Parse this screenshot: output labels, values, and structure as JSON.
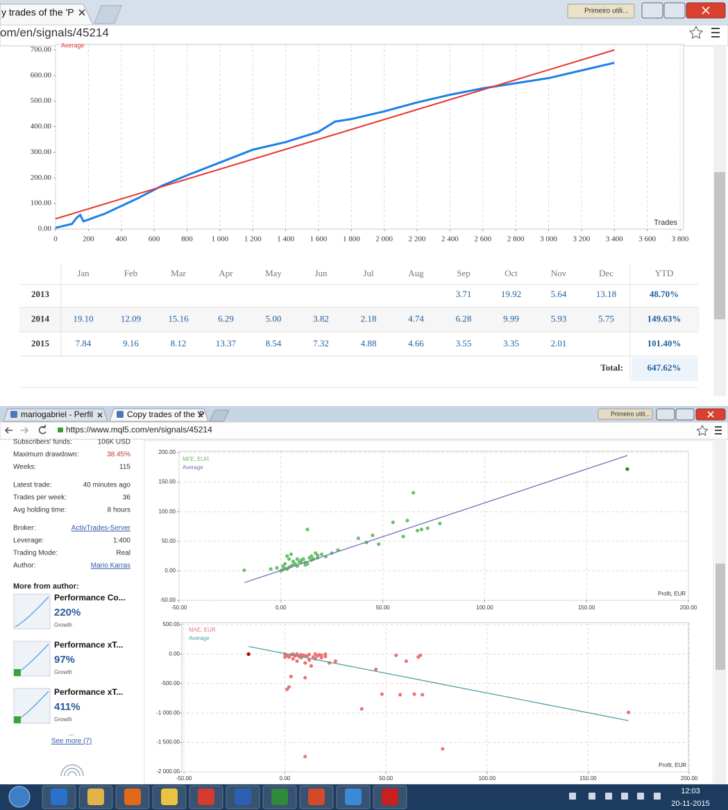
{
  "top_window": {
    "tab": "y trades of the 'P",
    "profile": "Primeiro utili...",
    "url": "om/en/signals/45214"
  },
  "bottom_window": {
    "tabs": [
      "mariogabriel - Perfil",
      "Copy trades of the 'P"
    ],
    "profile": "Primeiro utili...",
    "url": "https://www.mql5.com/en/signals/45214"
  },
  "chart_data": [
    {
      "type": "line",
      "x_label": "Trades",
      "grid": "x",
      "xlim": [
        0,
        3800
      ],
      "ylim": [
        0,
        700
      ],
      "xticks": [
        0,
        200,
        400,
        600,
        800,
        {
          "value": 1000,
          "label": "1 000"
        },
        {
          "value": 1200,
          "label": "1 200"
        },
        {
          "value": 1400,
          "label": "1 400"
        },
        {
          "value": 1600,
          "label": "1 600"
        },
        {
          "value": 1800,
          "label": "1 800"
        },
        {
          "value": 2000,
          "label": "2 000"
        },
        {
          "value": 2200,
          "label": "2 200"
        },
        {
          "value": 2400,
          "label": "2 400"
        },
        {
          "value": 2600,
          "label": "2 600"
        },
        {
          "value": 2800,
          "label": "2 800"
        },
        {
          "value": 3000,
          "label": "3 000"
        },
        {
          "value": 3200,
          "label": "3 200"
        },
        {
          "value": 3400,
          "label": "3 400"
        },
        {
          "value": 3600,
          "label": "3 600"
        },
        {
          "value": 3800,
          "label": "3 800"
        }
      ],
      "yticks": [
        {
          "value": 0,
          "label": "0.00"
        },
        {
          "value": 100,
          "label": "100.00"
        },
        {
          "value": 200,
          "label": "200.00"
        },
        {
          "value": 300,
          "label": "300.00"
        },
        {
          "value": 400,
          "label": "400.00"
        },
        {
          "value": 500,
          "label": "500.00"
        },
        {
          "value": 600,
          "label": "600.00"
        },
        {
          "value": 700,
          "label": "700.00"
        }
      ],
      "series": [
        {
          "color": "#1e7fe8",
          "style": "line",
          "width": 3,
          "x": [
            0,
            100,
            130,
            150,
            170,
            300,
            500,
            650,
            800,
            1000,
            1200,
            1400,
            1600,
            1700,
            1800,
            2000,
            2200,
            2400,
            2600,
            2800,
            3000,
            3200,
            3400
          ],
          "values": [
            5,
            20,
            45,
            55,
            30,
            60,
            120,
            170,
            210,
            260,
            310,
            340,
            380,
            420,
            430,
            460,
            495,
            525,
            550,
            570,
            590,
            620,
            650
          ]
        },
        {
          "name": "Average",
          "color": "#e8332f",
          "style": "line",
          "width": 2,
          "x": [
            0,
            3400
          ],
          "values": [
            40,
            700
          ]
        }
      ]
    },
    {
      "type": "scatter",
      "x_label": "Profit, EUR",
      "grid": "both",
      "xlim": [
        -50,
        200
      ],
      "ylim": [
        -50,
        200
      ],
      "xticks": [
        {
          "value": -50,
          "label": "-50.00"
        },
        {
          "value": 0,
          "label": "0.00"
        },
        {
          "value": 50,
          "label": "50.00"
        },
        {
          "value": 100,
          "label": "100.00"
        },
        {
          "value": 150,
          "label": "150.00"
        },
        {
          "value": 200,
          "label": "200.00"
        }
      ],
      "yticks": [
        {
          "value": -50,
          "label": "-50.00"
        },
        {
          "value": 0,
          "label": "0.00"
        },
        {
          "value": 50,
          "label": "50.00"
        },
        {
          "value": 100,
          "label": "100.00"
        },
        {
          "value": 150,
          "label": "150.00"
        },
        {
          "value": 200,
          "label": "200.00"
        }
      ],
      "series": [
        {
          "name": "MFE, EUR",
          "color": "#6cbf6c",
          "style": "points",
          "x": [
            -18,
            -5,
            -2,
            0,
            1,
            2,
            3,
            4,
            5,
            6,
            7,
            8,
            9,
            10,
            11,
            12,
            13,
            14,
            15,
            16,
            17,
            18,
            20,
            22,
            25,
            28,
            12,
            13,
            3,
            5,
            8,
            10,
            15,
            18,
            38,
            42,
            45,
            48,
            55,
            60,
            62,
            65,
            67,
            69,
            72,
            78,
            2,
            4,
            6,
            1
          ],
          "values": [
            1,
            3,
            5,
            0,
            2,
            4,
            3,
            6,
            8,
            10,
            12,
            8,
            15,
            18,
            20,
            14,
            70,
            22,
            25,
            20,
            30,
            26,
            28,
            24,
            30,
            35,
            10,
            12,
            25,
            28,
            20,
            14,
            18,
            22,
            55,
            48,
            60,
            45,
            82,
            58,
            85,
            132,
            68,
            70,
            72,
            80,
            12,
            20,
            16,
            8
          ]
        },
        {
          "name": "Average",
          "color": "#6b72b5",
          "style": "line",
          "width": 1.3,
          "x": [
            -18,
            170
          ],
          "values": [
            -20,
            195
          ]
        },
        {
          "color": "#1b8f1b",
          "style": "points",
          "x": [
            170
          ],
          "values": [
            172
          ]
        }
      ]
    },
    {
      "type": "scatter",
      "x_label": "Profit, EUR",
      "grid": "both",
      "xlim": [
        -50,
        200
      ],
      "ylim": [
        -2000,
        500
      ],
      "xticks": [
        {
          "value": -50,
          "label": "-50.00"
        },
        {
          "value": 0,
          "label": "0.00"
        },
        {
          "value": 50,
          "label": "50.00"
        },
        {
          "value": 100,
          "label": "100.00"
        },
        {
          "value": 150,
          "label": "150.00"
        },
        {
          "value": 200,
          "label": "200.00"
        }
      ],
      "yticks": [
        {
          "value": -2000,
          "label": "-2 000.00"
        },
        {
          "value": -1500,
          "label": "-1 500.00"
        },
        {
          "value": -1000,
          "label": "-1 000.00"
        },
        {
          "value": -500,
          "label": "-500.00"
        },
        {
          "value": 0,
          "label": "0.00"
        },
        {
          "value": 500,
          "label": "500.00"
        }
      ],
      "series": [
        {
          "name": "MAE, EUR",
          "color": "#f07272",
          "style": "points",
          "x": [
            0,
            1,
            2,
            3,
            4,
            5,
            6,
            7,
            8,
            9,
            10,
            11,
            12,
            13,
            14,
            15,
            16,
            17,
            18,
            20,
            22,
            25,
            4,
            6,
            8,
            10,
            12,
            15,
            18,
            20,
            2,
            1,
            3,
            0,
            10,
            38,
            45,
            48,
            55,
            57,
            60,
            64,
            66,
            67,
            68,
            78,
            10,
            170
          ],
          "values": [
            0,
            -20,
            -50,
            -10,
            -80,
            -30,
            -120,
            -40,
            -60,
            -20,
            -150,
            -30,
            -100,
            -200,
            -50,
            -80,
            -30,
            -10,
            -60,
            -40,
            -150,
            -120,
            0,
            0,
            -10,
            -30,
            -5,
            0,
            -20,
            0,
            -560,
            -600,
            -380,
            -50,
            -1740,
            -930,
            -260,
            -680,
            -20,
            -690,
            -120,
            -680,
            -50,
            -20,
            -690,
            -1610,
            -400,
            -990
          ]
        },
        {
          "name": "Average",
          "color": "#4aa3a0",
          "style": "line",
          "width": 1.3,
          "x": [
            -18,
            170
          ],
          "values": [
            130,
            -1130
          ]
        },
        {
          "color": "#b00000",
          "style": "points",
          "x": [
            -18
          ],
          "values": [
            0
          ]
        }
      ]
    }
  ],
  "table": {
    "months": [
      "Jan",
      "Feb",
      "Mar",
      "Apr",
      "May",
      "Jun",
      "Jul",
      "Aug",
      "Sep",
      "Oct",
      "Nov",
      "Dec"
    ],
    "ytd_label": "YTD",
    "rows": [
      {
        "year": "2013",
        "values": [
          null,
          null,
          null,
          null,
          null,
          null,
          null,
          null,
          "3.71",
          "19.92",
          "5.64",
          "13.18"
        ],
        "ytd": "48.70%"
      },
      {
        "year": "2014",
        "values": [
          "19.10",
          "12.09",
          "15.16",
          "6.29",
          "5.00",
          "3.82",
          "2.18",
          "4.74",
          "6.28",
          "9.99",
          "5.93",
          "5.75"
        ],
        "ytd": "149.63%"
      },
      {
        "year": "2015",
        "values": [
          "7.84",
          "9.16",
          "8.12",
          "13.37",
          "8.54",
          "7.32",
          "4.88",
          "4.66",
          "3.55",
          "3.35",
          "2.01",
          null
        ],
        "ytd": "101.40%"
      }
    ],
    "total": {
      "label": "Total:",
      "value": "647.62%"
    }
  },
  "sidebar": {
    "stats": [
      [
        {
          "label": "Subscribers' funds:",
          "value": "106K USD"
        },
        {
          "label": "Maximum drawdown:",
          "value": "38.45%"
        },
        {
          "label": "Weeks:",
          "value": "115"
        }
      ],
      [
        {
          "label": "Latest trade:",
          "value": "40 minutes ago"
        },
        {
          "label": "Trades per week:",
          "value": "36"
        },
        {
          "label": "Avg holding time:",
          "value": "8 hours"
        }
      ],
      [
        {
          "label": "Broker:",
          "value": "ActivTrades-Server"
        },
        {
          "label": "Leverage:",
          "value": "1:400"
        },
        {
          "label": "Trading Mode:",
          "value": "Real"
        },
        {
          "label": "Author:",
          "value": "Mario Karras"
        }
      ]
    ],
    "more_title": "More from author:",
    "authors": [
      {
        "title": "Performance Co...",
        "growth": "220%",
        "growth_label": "Growth"
      },
      {
        "title": "Performance xT...",
        "growth": "97%",
        "growth_label": "Growth"
      },
      {
        "title": "Performance xT...",
        "growth": "411%",
        "growth_label": "Growth"
      }
    ],
    "ellipsis": "...",
    "see_more": "See more (7)"
  },
  "clock": {
    "time": "12:03",
    "date": "20-11-2015"
  }
}
